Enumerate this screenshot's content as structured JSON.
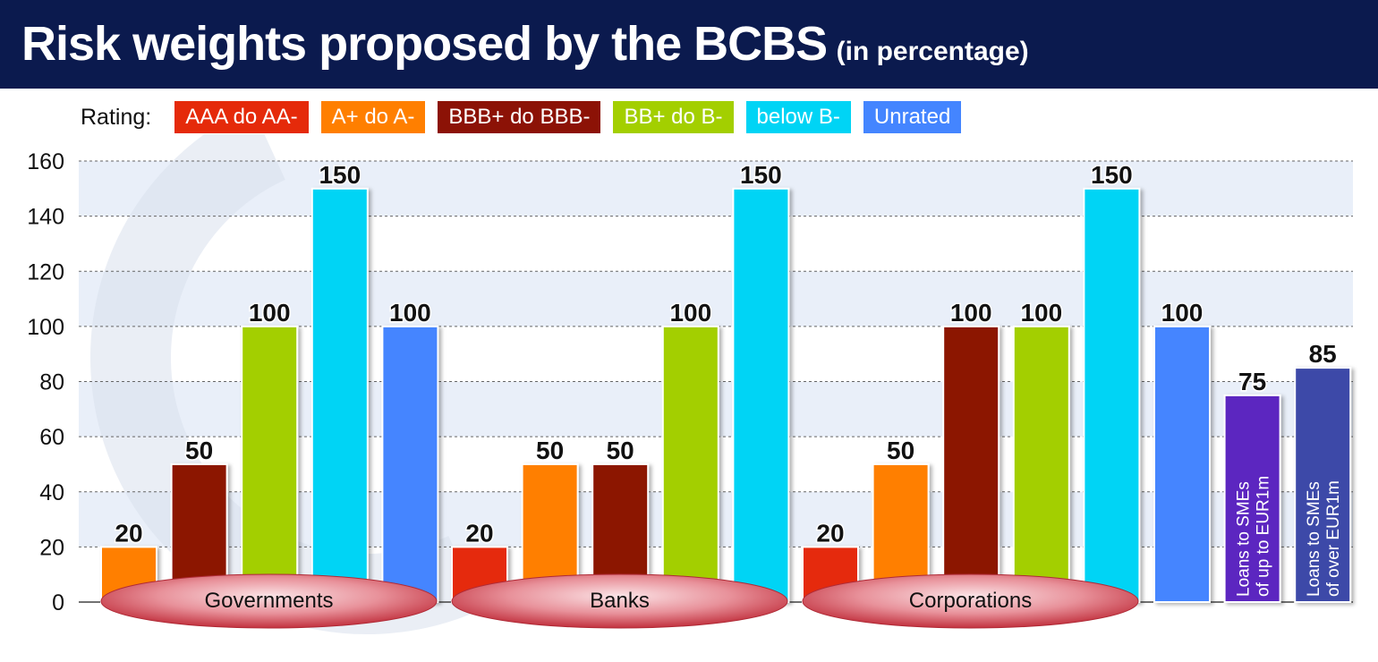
{
  "title": "Risk weights proposed by the BCBS",
  "subtitle": "(in percentage)",
  "legend": {
    "label": "Rating:",
    "items": [
      {
        "name": "AAA do AA-",
        "color": "#e52a0a"
      },
      {
        "name": "A+ do A-",
        "color": "#ff7f00"
      },
      {
        "name": "BBB+ do BBB-",
        "color": "#8c1206"
      },
      {
        "name": "BB+ do B-",
        "color": "#a3cf00"
      },
      {
        "name": "below B-",
        "color": "#00d4f5"
      },
      {
        "name": "Unrated",
        "color": "#4485ff"
      }
    ]
  },
  "chart_data": {
    "type": "bar",
    "ylim": [
      0,
      160
    ],
    "yticks": [
      "0",
      "20",
      "40",
      "60",
      "80",
      "100",
      "120",
      "140",
      "160"
    ],
    "grid": true,
    "groups": [
      {
        "label": "Governments",
        "bars": [
          {
            "series": "A+ do A-",
            "value": 20,
            "label": "20"
          },
          {
            "series": "BBB+ do BBB-",
            "value": 50,
            "label": "50"
          },
          {
            "series": "BB+ do B-",
            "value": 100,
            "label": "100"
          },
          {
            "series": "below B-",
            "value": 150,
            "label": "150"
          },
          {
            "series": "Unrated",
            "value": 100,
            "label": "100"
          }
        ]
      },
      {
        "label": "Banks",
        "bars": [
          {
            "series": "AAA do AA-",
            "value": 20,
            "label": "20"
          },
          {
            "series": "A+ do A-",
            "value": 50,
            "label": "50"
          },
          {
            "series": "BBB+ do BBB-",
            "value": 50,
            "label": "50"
          },
          {
            "series": "BB+ do B-",
            "value": 100,
            "label": "100"
          },
          {
            "series": "below B-",
            "value": 150,
            "label": "150"
          }
        ]
      },
      {
        "label": "Corporations",
        "bars": [
          {
            "series": "AAA do AA-",
            "value": 20,
            "label": "20"
          },
          {
            "series": "A+ do A-",
            "value": 50,
            "label": "50"
          },
          {
            "series": "BBB+ do BBB-",
            "value": 100,
            "label": "100"
          },
          {
            "series": "BB+ do B-",
            "value": 100,
            "label": "100"
          },
          {
            "series": "below B-",
            "value": 150,
            "label": "150"
          },
          {
            "series": "Unrated",
            "value": 100,
            "label": "100"
          },
          {
            "series": "Loans to SMEs of up to EUR1m",
            "value": 75,
            "label": "75",
            "text": [
              "Loans to SMEs",
              "of up to EUR1m"
            ],
            "color": "#5b25c0"
          },
          {
            "series": "Loans to SMEs of over EUR1m",
            "value": 85,
            "label": "85",
            "text": [
              "Loans to SMEs",
              "of over EUR1m"
            ],
            "color": "#3c49a8"
          }
        ]
      }
    ]
  }
}
